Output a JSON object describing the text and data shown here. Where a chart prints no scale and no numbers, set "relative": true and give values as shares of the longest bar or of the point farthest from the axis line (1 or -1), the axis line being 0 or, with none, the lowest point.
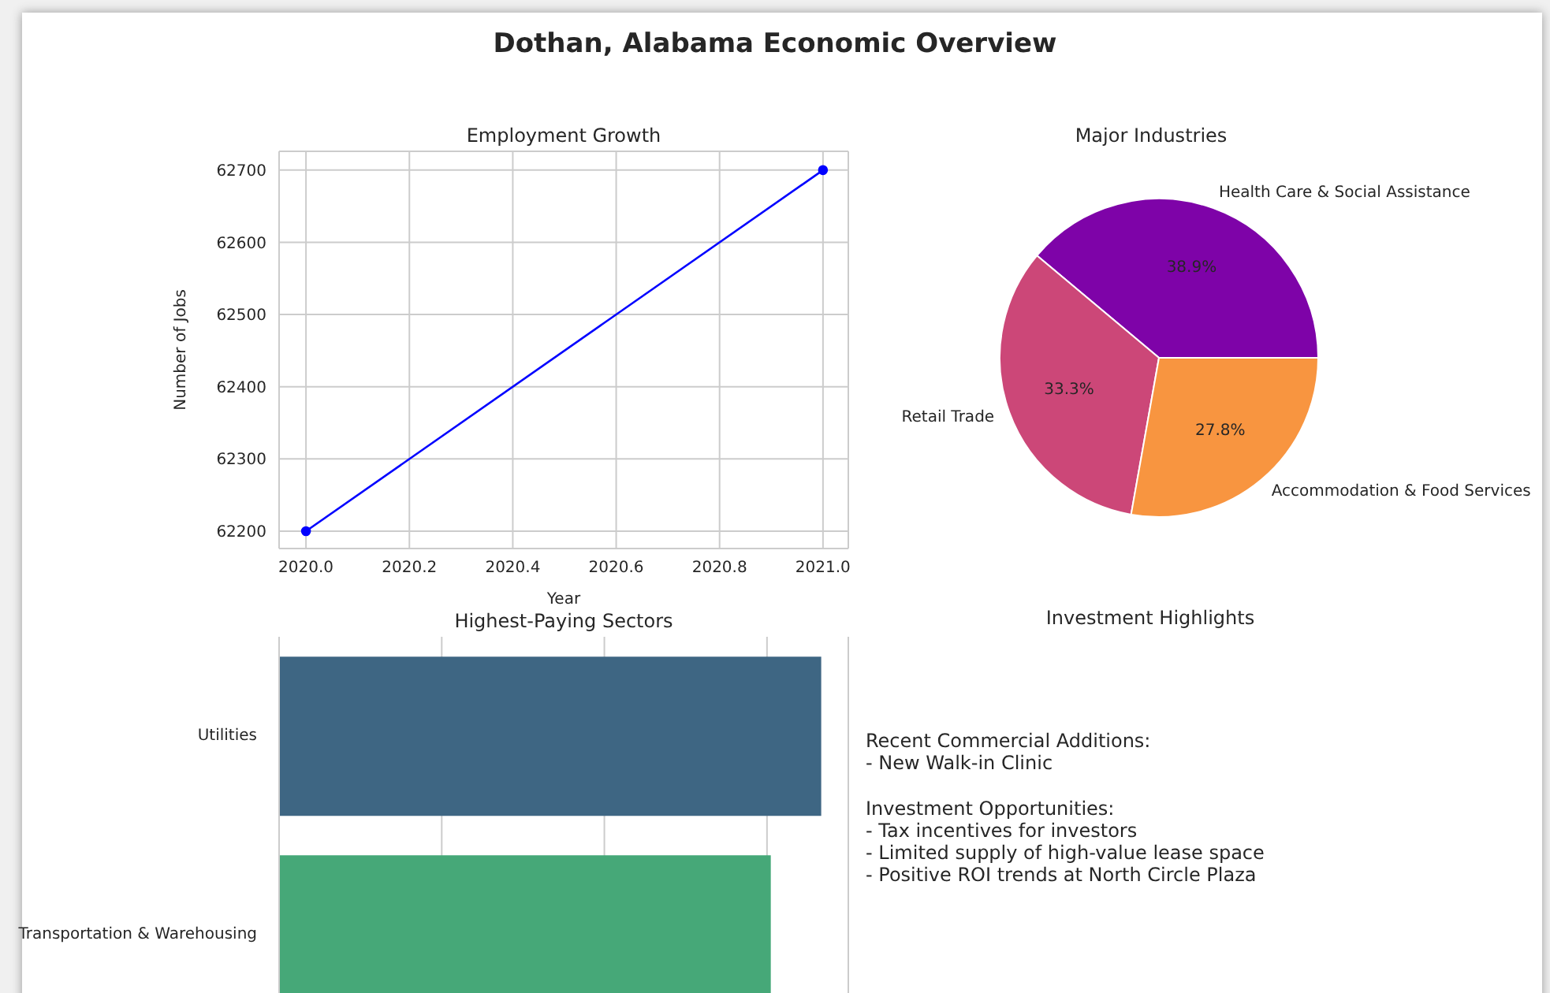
{
  "chart_data": [
    {
      "type": "other",
      "title": "Dothan, Alabama Economic Overview"
    },
    {
      "type": "line",
      "title": "Employment Growth",
      "xlabel": "Year",
      "ylabel": "Number of Jobs",
      "x": [
        2020,
        2021
      ],
      "series": [
        {
          "color": "#0000ff",
          "values": [
            62200,
            62700
          ]
        }
      ],
      "xlim": [
        2019.948,
        2021.049
      ],
      "xticks": [
        {
          "value": 2020,
          "label": "2020.0"
        },
        {
          "value": 2020.2,
          "label": "2020.2"
        },
        {
          "value": 2020.4,
          "label": "2020.4"
        },
        {
          "value": 2020.6,
          "label": "2020.6"
        },
        {
          "value": 2020.8,
          "label": "2020.8"
        },
        {
          "value": 2021,
          "label": "2021.0"
        }
      ],
      "ylim": [
        62176,
        62726
      ],
      "yticks": [
        62200,
        62300,
        62400,
        62500,
        62600,
        62700
      ],
      "grid": true,
      "marker": "circle",
      "line_style": "solid"
    },
    {
      "type": "pie",
      "title": "Major Industries",
      "categories": [
        "Health Care & Social Assistance",
        "Retail Trade",
        "Accommodation & Food Services"
      ],
      "values": [
        38.9,
        33.3,
        27.8
      ],
      "colors": [
        "#7e03a8",
        "#cc4778",
        "#f89540"
      ],
      "value_labels": [
        "38.9%",
        "33.3%",
        "27.8%"
      ]
    },
    {
      "type": "bar",
      "title": "Highest-Paying Sectors",
      "orientation": "horizontal",
      "relative": true,
      "categories": [
        "Utilities",
        "Transportation & Warehousing"
      ],
      "values": [
        1,
        0.907
      ],
      "colors": [
        "#3e6683",
        "#46a878"
      ],
      "grid": "x"
    },
    {
      "type": "other",
      "title": "Investment Highlights",
      "annotations": [
        "Recent Commercial Additions:\n- New Walk-in Clinic",
        "Investment Opportunities:\n- Tax incentives for investors\n- Limited supply of high-value lease space\n- Positive ROI trends at North Circle Plaza"
      ]
    }
  ]
}
